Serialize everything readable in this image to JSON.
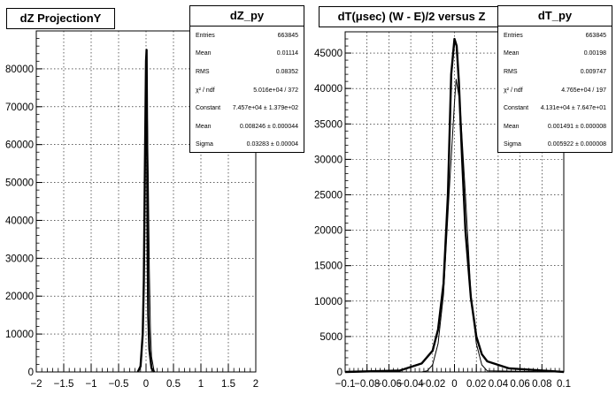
{
  "footer_note": "",
  "chart_data": [
    {
      "type": "line",
      "title": "dZ ProjectionY",
      "xlim": [
        -2,
        2
      ],
      "ylim": [
        0,
        90000
      ],
      "x_ticks": [
        "−2",
        "−1.5",
        "−1",
        "−0.5",
        "0",
        "0.5",
        "1",
        "1.5",
        "2"
      ],
      "y_ticks": [
        "0",
        "10000",
        "20000",
        "30000",
        "40000",
        "50000",
        "60000",
        "70000",
        "80000"
      ],
      "grid": true,
      "series": [
        {
          "values_x": [
            -0.15,
            -0.1,
            -0.06,
            -0.04,
            -0.02,
            0.0,
            0.01,
            0.02,
            0.03,
            0.04,
            0.06,
            0.1,
            0.15
          ],
          "values_y": [
            0,
            1500,
            10000,
            24000,
            55000,
            82000,
            85000,
            60000,
            30000,
            15000,
            6000,
            1000,
            0
          ]
        },
        {
          "values_x": [
            -0.15,
            -0.1,
            -0.08,
            -0.06,
            -0.04,
            -0.02,
            0.0,
            0.01,
            0.02,
            0.04,
            0.06,
            0.08,
            0.1,
            0.15
          ],
          "values_y": [
            0,
            1500,
            4000,
            11000,
            26000,
            50000,
            70000,
            74000,
            71000,
            52000,
            27000,
            11000,
            4000,
            0
          ]
        }
      ],
      "stats": {
        "title": "dZ_py",
        "rows": [
          {
            "label": "Entries",
            "value": "663845"
          },
          {
            "label": "Mean",
            "value": "0.01114"
          },
          {
            "label": "RMS",
            "value": "0.08352"
          },
          {
            "label": "χ² / ndf",
            "value": "5.016e+04 / 372"
          },
          {
            "label": "Constant",
            "value": "7.457e+04 ± 1.379e+02"
          },
          {
            "label": "Mean",
            "value": "0.008246 ± 0.000044"
          },
          {
            "label": "Sigma",
            "value": "0.03283 ± 0.00004"
          }
        ]
      }
    },
    {
      "type": "line",
      "title": "dT(μsec) (W - E)/2 versus Z",
      "xlim": [
        -0.1,
        0.1
      ],
      "ylim": [
        0,
        48000
      ],
      "x_ticks": [
        "−0.1",
        "−0.08",
        "−0.06",
        "−0.04",
        "−0.02",
        "0",
        "0.02",
        "0.04",
        "0.06",
        "0.08",
        "0.1"
      ],
      "y_ticks": [
        "0",
        "5000",
        "10000",
        "15000",
        "20000",
        "25000",
        "30000",
        "35000",
        "40000",
        "45000"
      ],
      "grid": true,
      "series": [
        {
          "values_x": [
            -0.1,
            -0.05,
            -0.03,
            -0.02,
            -0.015,
            -0.01,
            -0.006,
            -0.003,
            0.0,
            0.002,
            0.004,
            0.007,
            0.01,
            0.015,
            0.02,
            0.025,
            0.03,
            0.05,
            0.1
          ],
          "values_y": [
            0,
            200,
            1200,
            3000,
            6000,
            12500,
            25000,
            42000,
            47000,
            46000,
            41000,
            30000,
            20000,
            10500,
            5000,
            2500,
            1500,
            500,
            0
          ]
        },
        {
          "values_x": [
            -0.1,
            -0.03,
            -0.025,
            -0.02,
            -0.015,
            -0.01,
            -0.005,
            0.0,
            0.0015,
            0.005,
            0.01,
            0.015,
            0.02,
            0.025,
            0.03,
            0.1
          ],
          "values_y": [
            0,
            0,
            150,
            1000,
            4000,
            11000,
            25000,
            38000,
            41300,
            38000,
            25000,
            11000,
            4000,
            1000,
            150,
            0
          ]
        }
      ],
      "stats": {
        "title": "dT_py",
        "rows": [
          {
            "label": "Entries",
            "value": "663845"
          },
          {
            "label": "Mean",
            "value": "0.00198"
          },
          {
            "label": "RMS",
            "value": "0.009747"
          },
          {
            "label": "χ² / ndf",
            "value": "4.765e+04 / 197"
          },
          {
            "label": "Constant",
            "value": "4.131e+04 ± 7.647e+01"
          },
          {
            "label": "Mean",
            "value": "0.001491 ± 0.000008"
          },
          {
            "label": "Sigma",
            "value": "0.005922 ± 0.000008"
          }
        ]
      }
    }
  ]
}
